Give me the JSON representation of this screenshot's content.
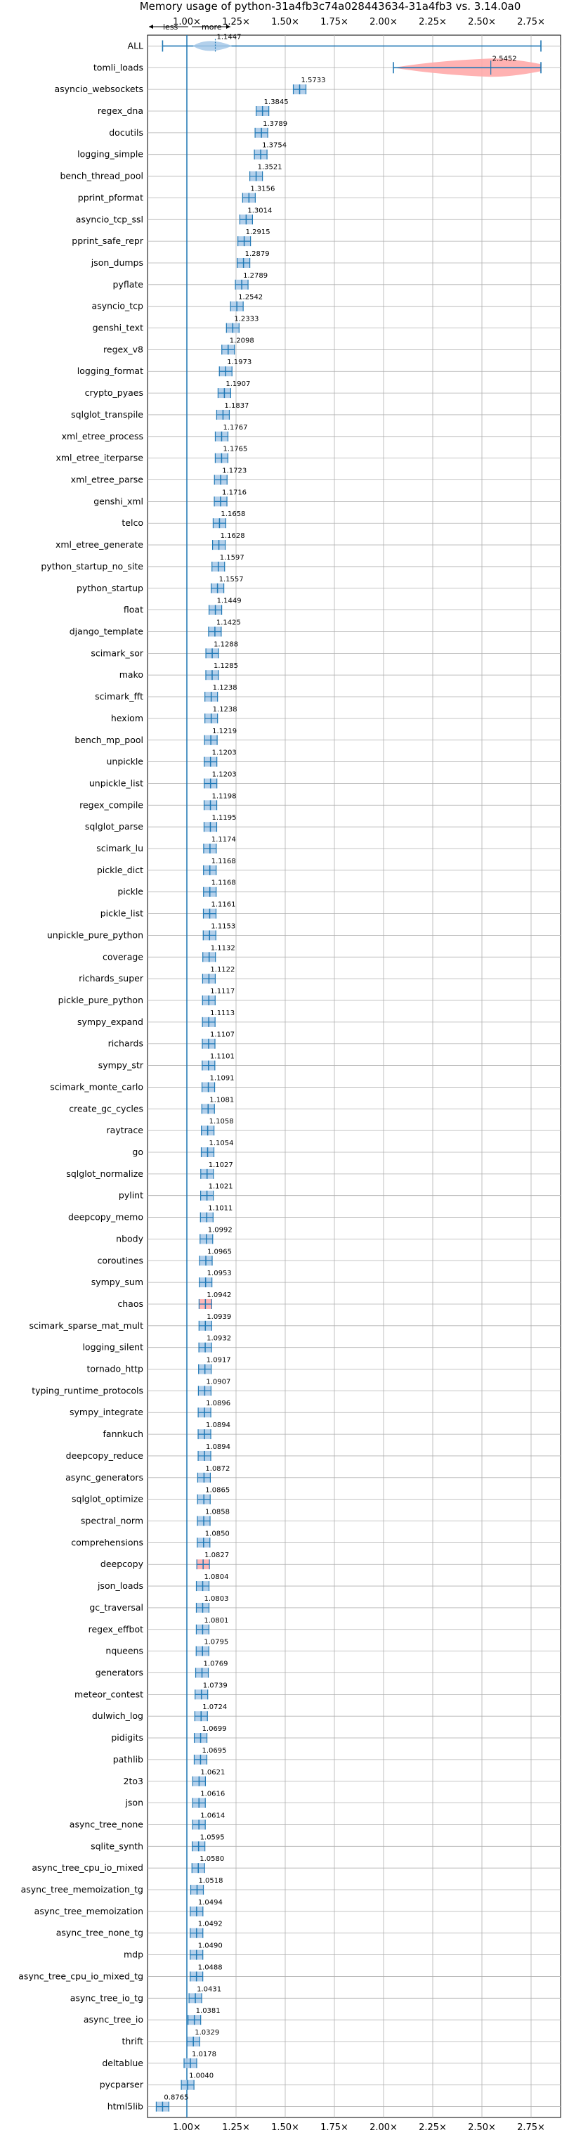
{
  "chart_data": {
    "type": "violin",
    "title": "Memory usage of python-31a4fb3c74a028443634-31a4fb3 vs. 3.14.0a0",
    "xlabel": "",
    "ylabel": "",
    "xlim": [
      0.8,
      2.9
    ],
    "x_ticks": [
      "1.00×",
      "1.25×",
      "1.50×",
      "1.75×",
      "2.00×",
      "2.25×",
      "2.50×",
      "2.75×"
    ],
    "x_tick_values": [
      1.0,
      1.25,
      1.5,
      1.75,
      2.0,
      2.25,
      2.5,
      2.75
    ],
    "direction_labels": {
      "less": "less",
      "more": "more"
    },
    "reference_line": 1.0,
    "grid": true,
    "categories": [
      "ALL",
      "tomli_loads",
      "asyncio_websockets",
      "regex_dna",
      "docutils",
      "logging_simple",
      "bench_thread_pool",
      "pprint_pformat",
      "asyncio_tcp_ssl",
      "pprint_safe_repr",
      "json_dumps",
      "pyflate",
      "asyncio_tcp",
      "genshi_text",
      "regex_v8",
      "logging_format",
      "crypto_pyaes",
      "sqlglot_transpile",
      "xml_etree_process",
      "xml_etree_iterparse",
      "xml_etree_parse",
      "genshi_xml",
      "telco",
      "xml_etree_generate",
      "python_startup_no_site",
      "python_startup",
      "float",
      "django_template",
      "scimark_sor",
      "mako",
      "scimark_fft",
      "hexiom",
      "bench_mp_pool",
      "unpickle",
      "unpickle_list",
      "regex_compile",
      "sqlglot_parse",
      "scimark_lu",
      "pickle_dict",
      "pickle",
      "pickle_list",
      "unpickle_pure_python",
      "coverage",
      "richards_super",
      "pickle_pure_python",
      "sympy_expand",
      "richards",
      "sympy_str",
      "scimark_monte_carlo",
      "create_gc_cycles",
      "raytrace",
      "go",
      "sqlglot_normalize",
      "pylint",
      "deepcopy_memo",
      "nbody",
      "coroutines",
      "sympy_sum",
      "chaos",
      "scimark_sparse_mat_mult",
      "logging_silent",
      "tornado_http",
      "typing_runtime_protocols",
      "sympy_integrate",
      "fannkuch",
      "deepcopy_reduce",
      "async_generators",
      "sqlglot_optimize",
      "spectral_norm",
      "comprehensions",
      "deepcopy",
      "json_loads",
      "gc_traversal",
      "regex_effbot",
      "nqueens",
      "generators",
      "meteor_contest",
      "dulwich_log",
      "pidigits",
      "pathlib",
      "2to3",
      "json",
      "async_tree_none",
      "sqlite_synth",
      "async_tree_cpu_io_mixed",
      "async_tree_memoization_tg",
      "async_tree_memoization",
      "async_tree_none_tg",
      "mdp",
      "async_tree_cpu_io_mixed_tg",
      "async_tree_io_tg",
      "async_tree_io",
      "thrift",
      "deltablue",
      "pycparser",
      "html5lib"
    ],
    "values": [
      1.1447,
      2.5452,
      1.5733,
      1.3845,
      1.3789,
      1.3754,
      1.3521,
      1.3156,
      1.3014,
      1.2915,
      1.2879,
      1.2789,
      1.2542,
      1.2333,
      1.2098,
      1.1973,
      1.1907,
      1.1837,
      1.1767,
      1.1765,
      1.1723,
      1.1716,
      1.1658,
      1.1628,
      1.1597,
      1.1557,
      1.1449,
      1.1425,
      1.1288,
      1.1285,
      1.1238,
      1.1238,
      1.1219,
      1.1203,
      1.1203,
      1.1198,
      1.1195,
      1.1174,
      1.1168,
      1.1168,
      1.1161,
      1.1153,
      1.1132,
      1.1122,
      1.1117,
      1.1113,
      1.1107,
      1.1101,
      1.1091,
      1.1081,
      1.1058,
      1.1054,
      1.1027,
      1.1021,
      1.1011,
      1.0992,
      1.0965,
      1.0953,
      1.0942,
      1.0939,
      1.0932,
      1.0917,
      1.0907,
      1.0896,
      1.0894,
      1.0894,
      1.0872,
      1.0865,
      1.0858,
      1.085,
      1.0827,
      1.0804,
      1.0803,
      1.0801,
      1.0795,
      1.0769,
      1.0739,
      1.0724,
      1.0699,
      1.0695,
      1.0621,
      1.0616,
      1.0614,
      1.0595,
      1.058,
      1.0518,
      1.0494,
      1.0492,
      1.049,
      1.0488,
      1.0431,
      1.0381,
      1.0329,
      1.0178,
      1.004,
      0.8765
    ],
    "value_labels": [
      "1.1447",
      "2.5452",
      "1.5733",
      "1.3845",
      "1.3789",
      "1.3754",
      "1.3521",
      "1.3156",
      "1.3014",
      "1.2915",
      "1.2879",
      "1.2789",
      "1.2542",
      "1.2333",
      "1.2098",
      "1.1973",
      "1.1907",
      "1.1837",
      "1.1767",
      "1.1765",
      "1.1723",
      "1.1716",
      "1.1658",
      "1.1628",
      "1.1597",
      "1.1557",
      "1.1449",
      "1.1425",
      "1.1288",
      "1.1285",
      "1.1238",
      "1.1238",
      "1.1219",
      "1.1203",
      "1.1203",
      "1.1198",
      "1.1195",
      "1.1174",
      "1.1168",
      "1.1168",
      "1.1161",
      "1.1153",
      "1.1132",
      "1.1122",
      "1.1117",
      "1.1113",
      "1.1107",
      "1.1101",
      "1.1091",
      "1.1081",
      "1.1058",
      "1.1054",
      "1.1027",
      "1.1021",
      "1.1011",
      "1.0992",
      "1.0965",
      "1.0953",
      "1.0942",
      "1.0939",
      "1.0932",
      "1.0917",
      "1.0907",
      "1.0896",
      "1.0894",
      "1.0894",
      "1.0872",
      "1.0865",
      "1.0858",
      "1.0850",
      "1.0827",
      "1.0804",
      "1.0803",
      "1.0801",
      "1.0795",
      "1.0769",
      "1.0739",
      "1.0724",
      "1.0699",
      "1.0695",
      "1.0621",
      "1.0616",
      "1.0614",
      "1.0595",
      "1.0580",
      "1.0518",
      "1.0494",
      "1.0492",
      "1.0490",
      "1.0488",
      "1.0431",
      "1.0381",
      "1.0329",
      "1.0178",
      "1.0040",
      "0.8765"
    ],
    "highlight_rows": {
      "tomli_loads": "red",
      "chaos": "red",
      "deepcopy": "red"
    },
    "all_range": [
      0.8765,
      2.8
    ],
    "tomli_range": [
      2.05,
      2.8
    ],
    "colors": {
      "default": "#1f77b4",
      "violin_default": "#a6c8e8",
      "violin_highlight": "#ffaaaa",
      "grid": "#b0b0b0"
    }
  }
}
